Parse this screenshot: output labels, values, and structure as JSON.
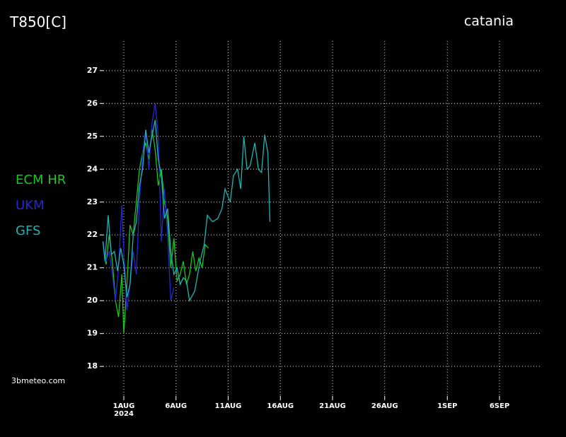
{
  "chart_data": {
    "type": "line",
    "title": "T850[C]",
    "subtitle": "catania",
    "credit": "3bmeteo.com",
    "year": "2024",
    "xlim": [
      -2.0,
      40.0
    ],
    "xticks": [
      {
        "value": 0,
        "label": "1AUG"
      },
      {
        "value": 5,
        "label": "6AUG"
      },
      {
        "value": 10,
        "label": "11AUG"
      },
      {
        "value": 15,
        "label": "16AUG"
      },
      {
        "value": 20,
        "label": "21AUG"
      },
      {
        "value": 25,
        "label": "26AUG"
      },
      {
        "value": 31,
        "label": "1SEP"
      },
      {
        "value": 36,
        "label": "6SEP"
      }
    ],
    "ylim": [
      17.1,
      27.9
    ],
    "yticks": [
      18,
      19,
      20,
      21,
      22,
      23,
      24,
      25,
      26,
      27
    ],
    "grid": true,
    "series": [
      {
        "name": "ECM HR",
        "color": "#19c819",
        "x": [
          -2.0,
          -1.7,
          -1.4,
          -1.1,
          -0.8,
          -0.5,
          -0.2,
          0.0,
          0.3,
          0.6,
          0.9,
          1.2,
          1.5,
          1.8,
          2.1,
          2.4,
          2.7,
          3.0,
          3.3,
          3.6,
          3.9,
          4.2,
          4.5,
          4.8,
          5.1,
          5.4,
          5.7,
          6.0,
          6.3,
          6.6,
          6.9,
          7.2,
          7.5,
          7.8,
          8.1
        ],
        "values": [
          21.8,
          21.1,
          22.0,
          21.2,
          20.0,
          19.5,
          20.8,
          19.0,
          20.5,
          22.3,
          22.0,
          23.0,
          24.0,
          24.5,
          24.8,
          24.3,
          25.2,
          24.6,
          23.5,
          24.0,
          23.0,
          22.5,
          21.0,
          21.9,
          20.6,
          20.8,
          21.2,
          20.5,
          20.8,
          21.5,
          20.9,
          21.3,
          21.0,
          21.7,
          21.6
        ]
      },
      {
        "name": "UKM",
        "color": "#2626d2",
        "x": [
          -2.0,
          -1.7,
          -1.4,
          -1.1,
          -0.8,
          -0.5,
          -0.2,
          0.0,
          0.3,
          0.6,
          0.9,
          1.2,
          1.5,
          1.8,
          2.1,
          2.4,
          2.7,
          3.0,
          3.3,
          3.6,
          3.9,
          4.2,
          4.5,
          4.8
        ],
        "values": [
          21.8,
          21.2,
          21.5,
          20.8,
          20.0,
          21.0,
          22.9,
          21.5,
          19.7,
          20.5,
          21.5,
          20.8,
          23.0,
          24.5,
          25.2,
          24.0,
          25.4,
          26.0,
          25.0,
          21.8,
          23.4,
          22.0,
          20.0,
          20.4
        ]
      },
      {
        "name": "GFS",
        "color": "#1eb4b4",
        "x": [
          -2.0,
          -1.8,
          -1.5,
          -1.2,
          -0.9,
          -0.6,
          -0.3,
          0.0,
          0.3,
          0.6,
          0.9,
          1.2,
          1.5,
          1.8,
          2.1,
          2.4,
          2.7,
          3.0,
          3.3,
          3.6,
          3.9,
          4.2,
          4.5,
          4.8,
          5.1,
          5.4,
          5.7,
          6.0,
          6.3,
          6.8,
          7.3,
          7.7,
          8.0,
          8.5,
          9.0,
          9.4,
          9.7,
          10.2,
          10.5,
          10.9,
          11.2,
          11.5,
          11.8,
          12.1,
          12.55,
          12.9,
          13.2,
          13.5,
          13.8,
          14.0
        ],
        "values": [
          21.8,
          21.2,
          22.6,
          21.4,
          21.5,
          20.9,
          21.6,
          21.1,
          20.1,
          20.5,
          22.0,
          22.4,
          23.5,
          24.0,
          25.2,
          24.5,
          25.0,
          25.5,
          24.3,
          23.8,
          22.5,
          22.8,
          21.5,
          20.8,
          21.0,
          20.5,
          20.7,
          20.6,
          20.0,
          20.3,
          21.2,
          21.7,
          22.6,
          22.4,
          22.5,
          22.8,
          23.4,
          23.0,
          23.8,
          24.0,
          23.4,
          25.0,
          24.0,
          24.1,
          24.8,
          24.0,
          23.9,
          25.05,
          24.5,
          22.4
        ]
      }
    ]
  }
}
